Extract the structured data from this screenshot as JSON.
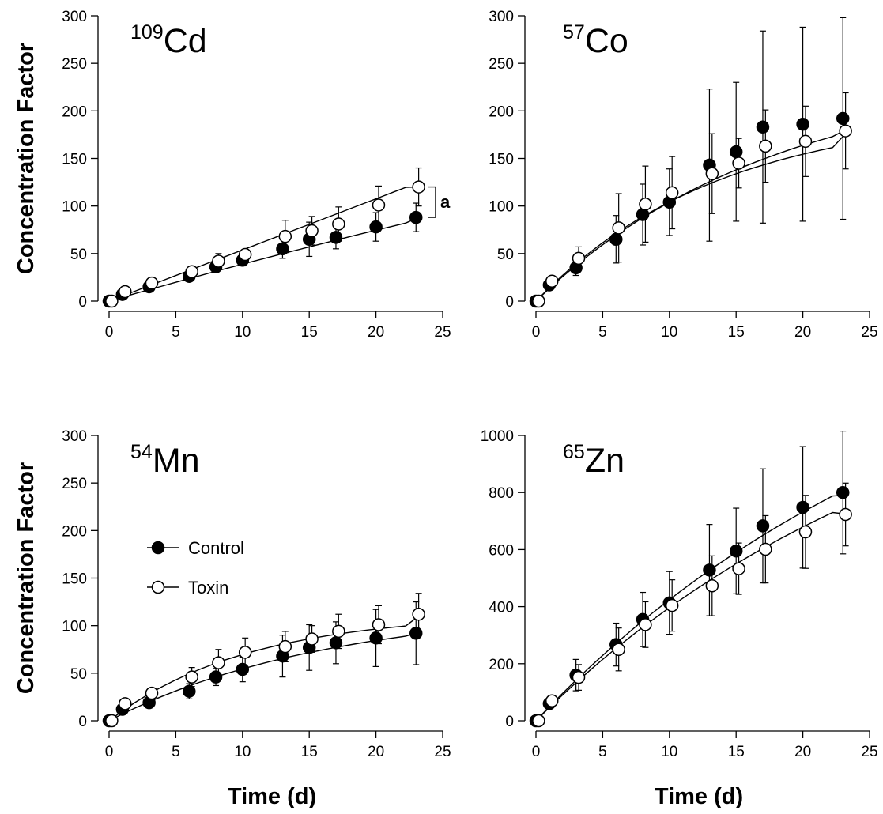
{
  "chart_data": [
    {
      "type": "scatter",
      "panel": "109Cd",
      "label_sup": "109",
      "label_main": "Cd",
      "ylabel": "Concentration Factor",
      "xlabel": "",
      "xlim": [
        0,
        25
      ],
      "ylim": [
        0,
        300
      ],
      "xticks": [
        0,
        5,
        10,
        15,
        20,
        25
      ],
      "yticks": [
        0,
        50,
        100,
        150,
        200,
        250,
        300
      ],
      "annotation": "a",
      "series": [
        {
          "name": "Control",
          "fill": "#000000",
          "x": [
            0,
            1,
            3,
            6,
            8,
            10,
            13,
            15,
            17,
            20,
            23
          ],
          "y": [
            0,
            7,
            15,
            26,
            36,
            43,
            55,
            65,
            67,
            78,
            88
          ],
          "err": [
            0,
            2,
            3,
            3,
            4,
            6,
            10,
            18,
            12,
            15,
            15
          ],
          "fit": [
            0,
            3.9,
            7.8,
            11.6,
            15.4,
            19.2,
            22.9,
            26.6,
            30.3,
            34.0,
            37.6,
            41.2,
            44.7,
            48.3,
            51.8,
            55.2,
            58.7,
            62.1,
            65.5,
            68.9,
            72.2,
            75.5,
            78.8,
            82.1,
            88
          ]
        },
        {
          "name": "Toxin",
          "fill": "#ffffff",
          "x": [
            0.2,
            1.2,
            3.2,
            6.2,
            8.2,
            10.2,
            13.2,
            15.2,
            17.2,
            20.2,
            23.2
          ],
          "y": [
            0,
            10,
            19,
            31,
            42,
            49,
            68,
            74,
            81,
            101,
            120
          ],
          "err": [
            0,
            2,
            3,
            3,
            8,
            5,
            17,
            15,
            18,
            20,
            20
          ],
          "fit": [
            0,
            5.2,
            10.4,
            15.6,
            20.8,
            26.0,
            31.2,
            36.4,
            41.6,
            46.8,
            52.0,
            57.2,
            62.4,
            67.6,
            72.8,
            78.0,
            83.2,
            88.4,
            93.6,
            98.8,
            104.0,
            109.2,
            114.4,
            119.6,
            120
          ]
        }
      ]
    },
    {
      "type": "scatter",
      "panel": "57Co",
      "label_sup": "57",
      "label_main": "Co",
      "ylabel": "",
      "xlabel": "",
      "xlim": [
        0,
        25
      ],
      "ylim": [
        0,
        300
      ],
      "xticks": [
        0,
        5,
        10,
        15,
        20,
        25
      ],
      "yticks": [
        0,
        50,
        100,
        150,
        200,
        250,
        300
      ],
      "series": [
        {
          "name": "Control",
          "fill": "#000000",
          "x": [
            0,
            1,
            3,
            6,
            8,
            10,
            13,
            15,
            17,
            20,
            23
          ],
          "y": [
            0,
            17,
            35,
            65,
            91,
            104,
            143,
            157,
            183,
            186,
            192
          ],
          "err": [
            0,
            5,
            8,
            25,
            32,
            35,
            80,
            73,
            101,
            102,
            106
          ],
          "fit": [
            0,
            12.8,
            24.9,
            36.4,
            47.3,
            57.6,
            67.3,
            76.5,
            85.3,
            93.6,
            101.4,
            108.9,
            116.0,
            122.7,
            129.0,
            135.0,
            140.7,
            146.1,
            151.2,
            156.1,
            160.7,
            165.0,
            169.1,
            173.0,
            180
          ]
        },
        {
          "name": "Toxin",
          "fill": "#ffffff",
          "x": [
            0.2,
            1.2,
            3.2,
            6.2,
            8.2,
            10.2,
            13.2,
            15.2,
            17.2,
            20.2,
            23.2
          ],
          "y": [
            0,
            21,
            45,
            77,
            102,
            114,
            134,
            145,
            163,
            168,
            179
          ],
          "err": [
            0,
            3,
            12,
            36,
            40,
            38,
            42,
            26,
            38,
            37,
            40
          ],
          "fit": [
            0,
            13.6,
            26.3,
            38.2,
            49.3,
            59.7,
            69.3,
            78.3,
            86.7,
            94.5,
            101.8,
            108.6,
            114.9,
            120.8,
            126.3,
            131.4,
            136.2,
            140.6,
            144.7,
            148.6,
            152.2,
            155.5,
            158.6,
            161.5,
            176
          ]
        }
      ]
    },
    {
      "type": "scatter",
      "panel": "54Mn",
      "label_sup": "54",
      "label_main": "Mn",
      "ylabel": "Concentration Factor",
      "xlabel": "Time (d)",
      "xlim": [
        0,
        25
      ],
      "ylim": [
        0,
        300
      ],
      "xticks": [
        0,
        5,
        10,
        15,
        20,
        25
      ],
      "yticks": [
        0,
        50,
        100,
        150,
        200,
        250,
        300
      ],
      "legend": {
        "position": "middle-left",
        "entries": [
          {
            "label": "Control",
            "fill": "#000000"
          },
          {
            "label": "Toxin",
            "fill": "#ffffff"
          }
        ]
      },
      "series": [
        {
          "name": "Control",
          "fill": "#000000",
          "x": [
            0,
            1,
            3,
            6,
            8,
            10,
            13,
            15,
            17,
            20,
            23
          ],
          "y": [
            0,
            12,
            19,
            31,
            46,
            54,
            68,
            77,
            82,
            87,
            92
          ],
          "err": [
            0,
            3,
            4,
            8,
            9,
            13,
            22,
            24,
            22,
            30,
            33
          ],
          "fit": [
            0,
            6.9,
            13.3,
            19.4,
            25.1,
            30.5,
            35.6,
            40.4,
            44.9,
            49.2,
            53.2,
            57.0,
            60.6,
            64.0,
            67.2,
            70.2,
            73.0,
            75.7,
            78.2,
            80.6,
            82.9,
            85.0,
            87.0,
            88.9,
            93
          ]
        },
        {
          "name": "Toxin",
          "fill": "#ffffff",
          "x": [
            0.2,
            1.2,
            3.2,
            6.2,
            8.2,
            10.2,
            13.2,
            15.2,
            17.2,
            20.2,
            23.2
          ],
          "y": [
            0,
            18,
            29,
            46,
            61,
            72,
            78,
            86,
            94,
            101,
            112
          ],
          "err": [
            0,
            3,
            4,
            10,
            14,
            15,
            16,
            14,
            18,
            20,
            22
          ],
          "fit": [
            0,
            10.0,
            19.1,
            27.4,
            35.0,
            41.9,
            48.2,
            53.9,
            59.1,
            63.9,
            68.2,
            72.2,
            75.8,
            79.1,
            82.1,
            84.8,
            87.3,
            89.6,
            91.7,
            93.6,
            95.3,
            96.9,
            98.3,
            99.6,
            110
          ]
        }
      ]
    },
    {
      "type": "scatter",
      "panel": "65Zn",
      "label_sup": "65",
      "label_main": "Zn",
      "ylabel": "",
      "xlabel": "Time (d)",
      "xlim": [
        0,
        25
      ],
      "ylim": [
        0,
        1000
      ],
      "xticks": [
        0,
        5,
        10,
        15,
        20,
        25
      ],
      "yticks": [
        0,
        200,
        400,
        600,
        800,
        1000
      ],
      "series": [
        {
          "name": "Control",
          "fill": "#000000",
          "x": [
            0,
            1,
            3,
            6,
            8,
            10,
            13,
            15,
            17,
            20,
            23
          ],
          "y": [
            0,
            60,
            160,
            267,
            355,
            413,
            528,
            595,
            683,
            748,
            800
          ],
          "err": [
            0,
            15,
            55,
            75,
            95,
            110,
            160,
            150,
            200,
            213,
            215
          ],
          "fit": [
            0,
            47.3,
            93.1,
            137.5,
            180.5,
            222.2,
            262.6,
            301.8,
            339.8,
            376.6,
            412.3,
            446.9,
            480.4,
            512.9,
            544.4,
            574.9,
            604.5,
            633.2,
            661.0,
            688.0,
            714.1,
            739.4,
            764.0,
            787.8,
            790
          ]
        },
        {
          "name": "Toxin",
          "fill": "#ffffff",
          "x": [
            0.2,
            1.2,
            3.2,
            6.2,
            8.2,
            10.2,
            13.2,
            15.2,
            17.2,
            20.2,
            23.2
          ],
          "y": [
            0,
            70,
            152,
            250,
            337,
            404,
            473,
            533,
            601,
            662,
            723
          ],
          "err": [
            0,
            15,
            45,
            75,
            80,
            90,
            105,
            90,
            118,
            128,
            110
          ],
          "fit": [
            0,
            44.5,
            87.6,
            129.3,
            169.6,
            208.6,
            246.3,
            282.8,
            318.1,
            352.3,
            385.4,
            417.4,
            448.4,
            478.4,
            507.4,
            535.5,
            562.7,
            589.0,
            614.5,
            639.1,
            662.9,
            686.0,
            708.3,
            729.9,
            725
          ]
        }
      ]
    }
  ]
}
